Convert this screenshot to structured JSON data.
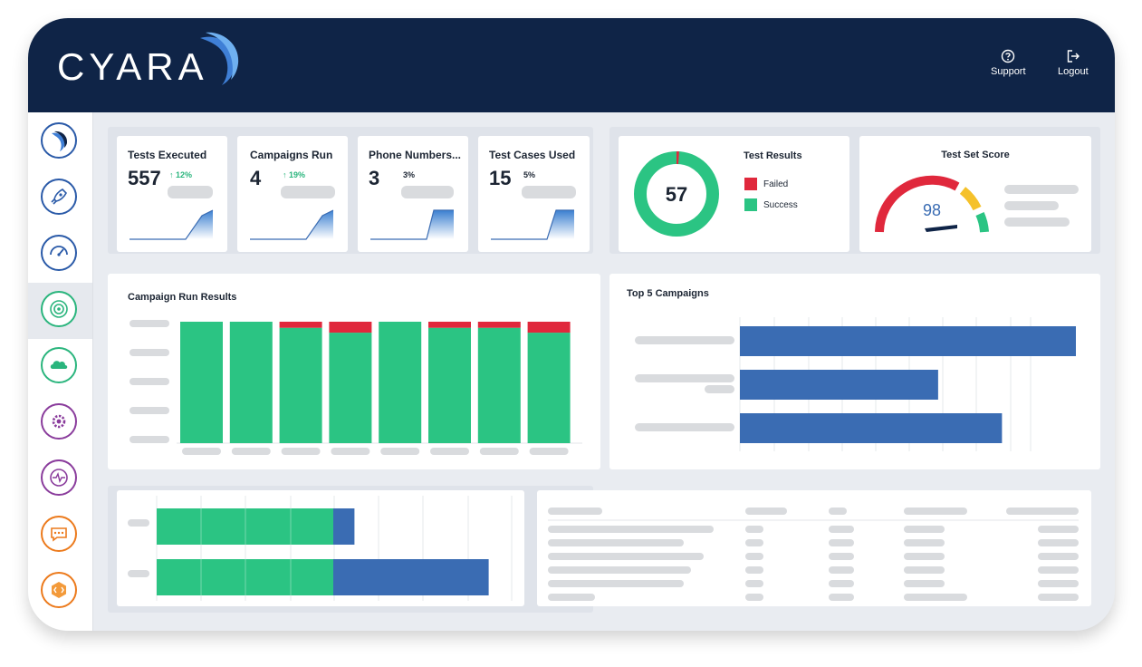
{
  "app": {
    "logo_text": "CYARA",
    "support_label": "Support",
    "logout_label": "Logout"
  },
  "sidebar": {
    "items": [
      {
        "icon": "cyara-swoosh-icon",
        "color": "#2a5aa8"
      },
      {
        "icon": "rocket-icon",
        "color": "#2a5aa8"
      },
      {
        "icon": "speedometer-icon",
        "color": "#2a5aa8"
      },
      {
        "icon": "target-icon",
        "color": "#2ab57d",
        "active": true
      },
      {
        "icon": "cloud-icon",
        "color": "#2ab57d"
      },
      {
        "icon": "gear-icon",
        "color": "#8a3c9c"
      },
      {
        "icon": "pulse-icon",
        "color": "#8a3c9c"
      },
      {
        "icon": "chat-icon",
        "color": "#ec7a1c"
      },
      {
        "icon": "bot-icon",
        "color": "#ec7a1c"
      }
    ]
  },
  "kpis": [
    {
      "title": "Tests Executed",
      "value": "557",
      "delta": "12%",
      "trend": "up"
    },
    {
      "title": "Campaigns Run",
      "value": "4",
      "delta": "19%",
      "trend": "up"
    },
    {
      "title": "Phone Numbers...",
      "value": "3",
      "delta": "3%",
      "trend": "none"
    },
    {
      "title": "Test Cases Used",
      "value": "15",
      "delta": "5%",
      "trend": "none"
    }
  ],
  "test_results": {
    "title": "Test Results",
    "center_value": "57",
    "legend": [
      {
        "label": "Failed",
        "color": "#e0283c"
      },
      {
        "label": "Success",
        "color": "#2bc483"
      }
    ],
    "failed_fraction": 0.01
  },
  "test_set_score": {
    "title": "Test Set Score",
    "value": "98",
    "score_fraction": 0.98
  },
  "campaign_run_results": {
    "title": "Campaign Run Results"
  },
  "top5_campaigns": {
    "title": "Top 5 Campaigns"
  },
  "colors": {
    "success": "#2bc483",
    "failed": "#e0283c",
    "bar_blue": "#3a6cb3",
    "navy": "#0f2447"
  },
  "chart_data": [
    {
      "type": "bar",
      "title": "Campaign Run Results",
      "categories": [
        "",
        "",
        "",
        "",
        "",
        "",
        "",
        ""
      ],
      "series": [
        {
          "values": [
            100,
            100,
            95,
            91,
            100,
            95,
            95,
            91
          ]
        },
        {
          "values": [
            0,
            0,
            5,
            9,
            0,
            5,
            5,
            9
          ]
        }
      ],
      "ylim": [
        0,
        100
      ]
    },
    {
      "type": "bar",
      "title": "Top 5 Campaigns",
      "orientation": "horizontal",
      "categories": [
        "",
        "",
        ""
      ],
      "values": [
        100,
        59,
        78
      ],
      "xlim": [
        0,
        100
      ]
    },
    {
      "type": "bar",
      "title": "",
      "orientation": "horizontal",
      "categories": [
        "",
        ""
      ],
      "series": [
        {
          "values": [
            50,
            50
          ]
        },
        {
          "values": [
            6,
            44
          ]
        }
      ],
      "xlim": [
        0,
        100
      ]
    }
  ]
}
